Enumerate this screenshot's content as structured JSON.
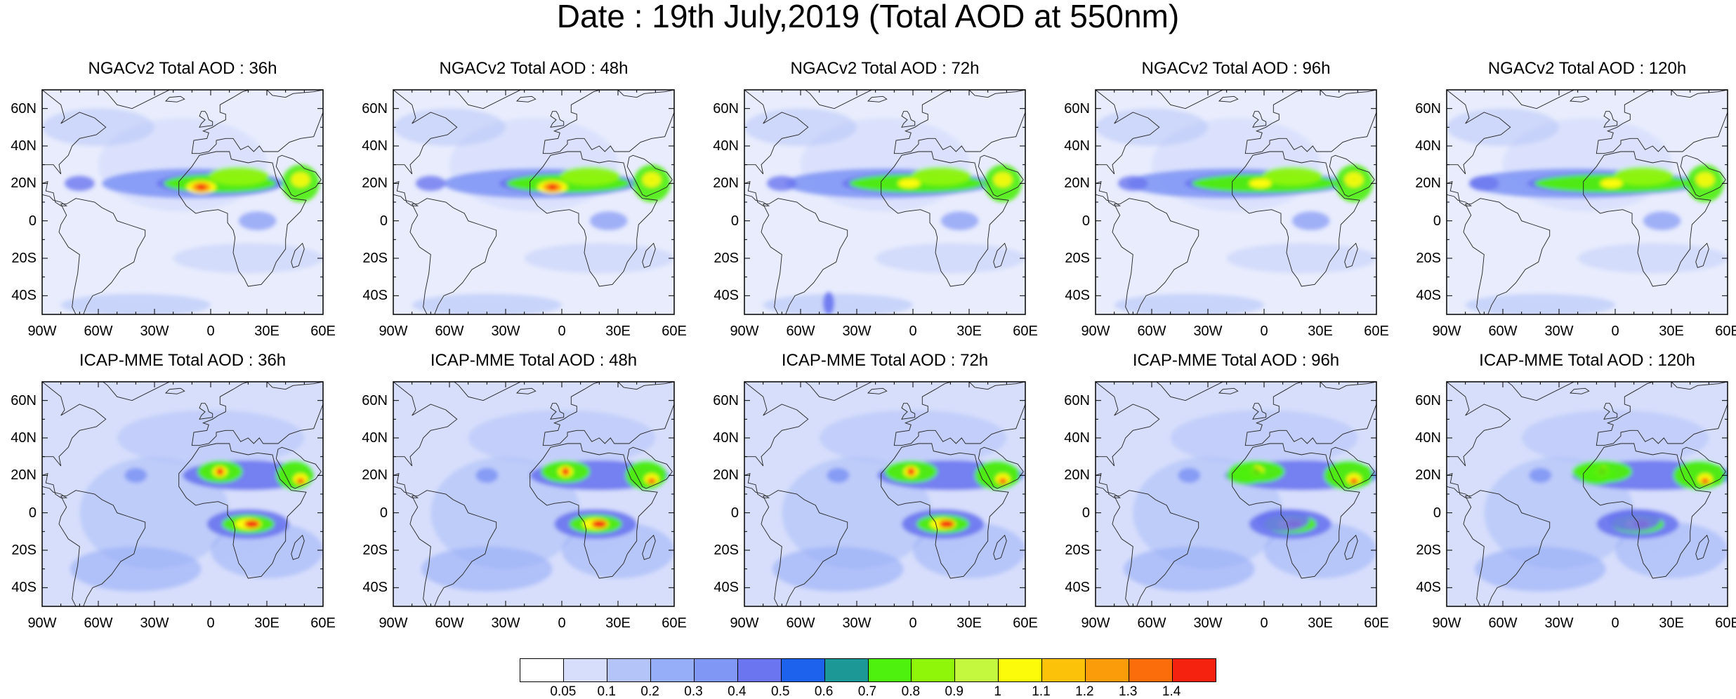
{
  "title": "Date : 19th July,2019 (Total AOD at 550nm)",
  "rows": [
    {
      "model": "NGACv2",
      "panels": [
        {
          "title": "NGACv2 Total AOD : 36h"
        },
        {
          "title": "NGACv2 Total AOD : 48h"
        },
        {
          "title": "NGACv2 Total AOD : 72h"
        },
        {
          "title": "NGACv2 Total AOD : 96h"
        },
        {
          "title": "NGACv2 Total AOD : 120h"
        }
      ]
    },
    {
      "model": "ICAP-MME",
      "panels": [
        {
          "title": "ICAP-MME Total AOD : 36h"
        },
        {
          "title": "ICAP-MME Total AOD : 48h"
        },
        {
          "title": "ICAP-MME Total AOD : 72h"
        },
        {
          "title": "ICAP-MME Total AOD : 96h"
        },
        {
          "title": "ICAP-MME Total AOD : 120h"
        }
      ]
    }
  ],
  "lat_labels": [
    "60N",
    "40N",
    "20N",
    "0",
    "20S",
    "40S"
  ],
  "lon_labels": [
    "90W",
    "60W",
    "30W",
    "0",
    "30E",
    "60E"
  ],
  "map_extent": {
    "lon": [
      -90,
      60
    ],
    "lat": [
      -50,
      70
    ]
  },
  "colorbar": {
    "labels": [
      "0.05",
      "0.1",
      "0.2",
      "0.3",
      "0.4",
      "0.5",
      "0.6",
      "0.7",
      "0.8",
      "0.9",
      "1",
      "1.1",
      "1.2",
      "1.3",
      "1.4"
    ],
    "colors": [
      "#ffffff",
      "#d7defc",
      "#b4c4f8",
      "#96aef7",
      "#8197f5",
      "#6a75ef",
      "#1c62ec",
      "#1c9996",
      "#4ef00d",
      "#8ff60a",
      "#c4f83f",
      "#fcfb0a",
      "#fcc20a",
      "#fb9c0a",
      "#fb6c0a",
      "#f52210"
    ]
  }
}
